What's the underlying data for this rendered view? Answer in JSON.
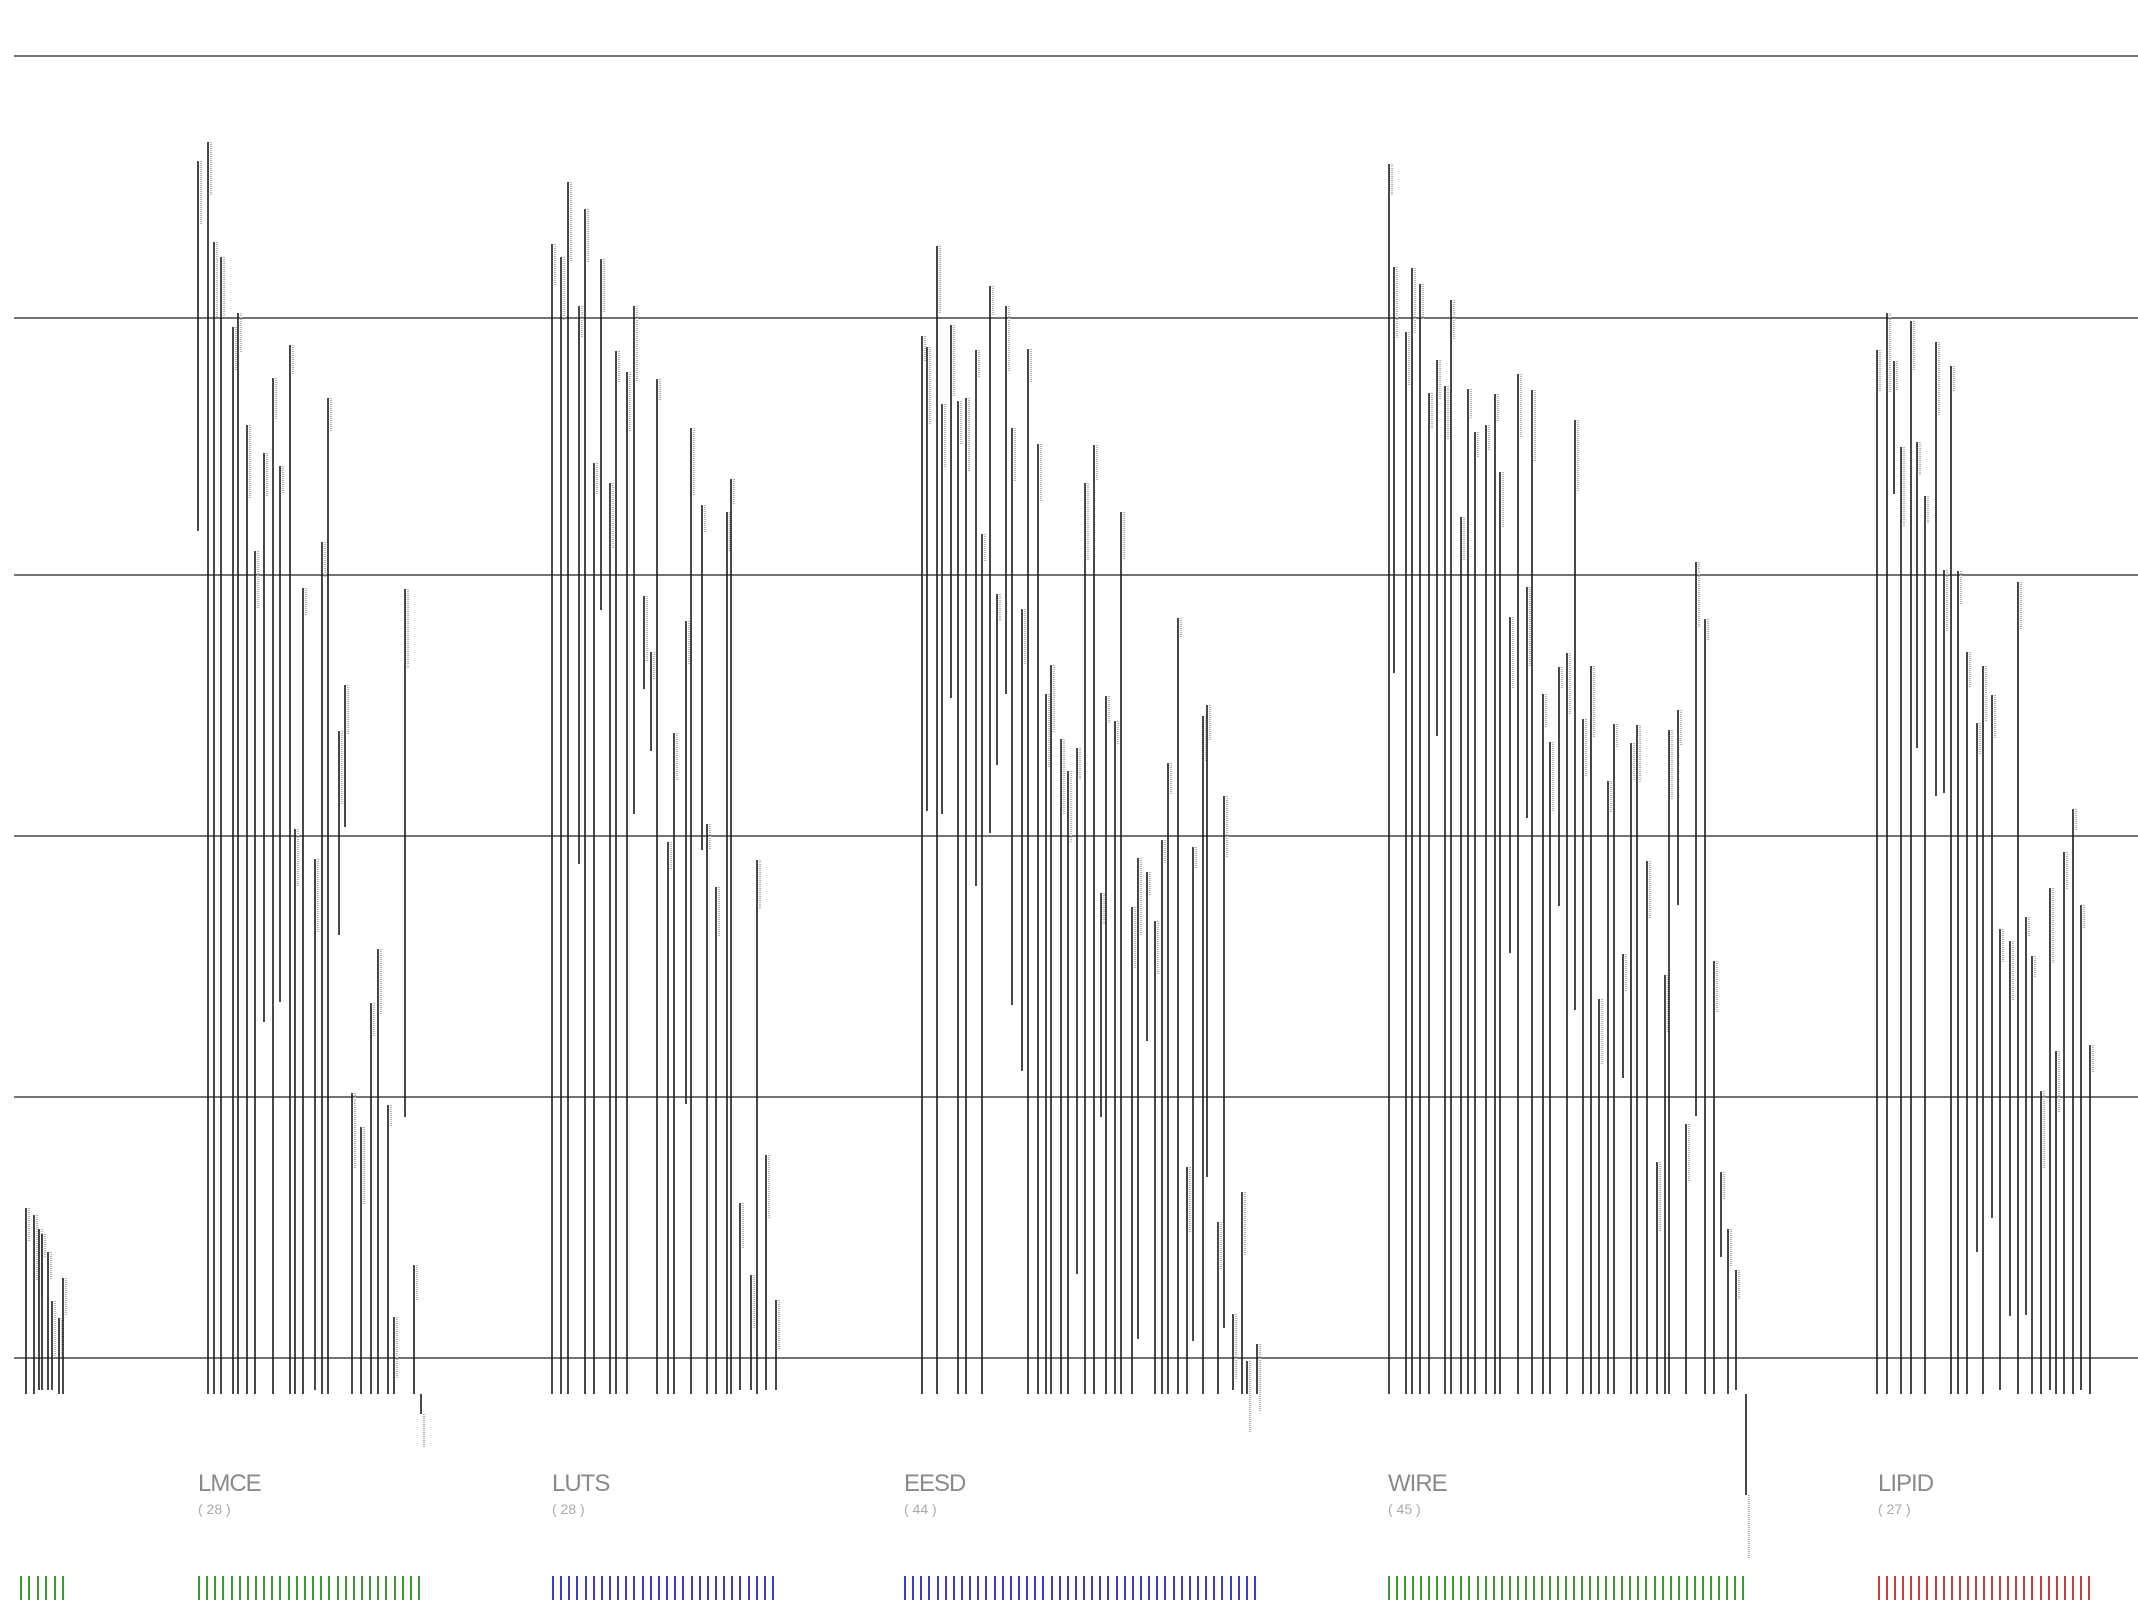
{
  "groups": [
    {
      "id": "g0",
      "name": "",
      "count": "",
      "color": "#3a9a3a",
      "bars": 6
    },
    {
      "id": "lmce",
      "name": "LMCE",
      "count": "( 28 )",
      "color": "#3a9a3a",
      "bars": 28
    },
    {
      "id": "luts",
      "name": "LUTS",
      "count": "( 28 )",
      "color": "#3a3ad0",
      "bars": 28
    },
    {
      "id": "eesd",
      "name": "EESD",
      "count": "( 44 )",
      "color": "#3a3ad0",
      "bars": 44
    },
    {
      "id": "wire",
      "name": "WIRE",
      "count": "( 45 )",
      "color": "#3a9a3a",
      "bars": 45
    },
    {
      "id": "lipid",
      "name": "LIPID",
      "count": "( 27 )",
      "color": "#d03a3a",
      "bars": 27
    }
  ]
}
